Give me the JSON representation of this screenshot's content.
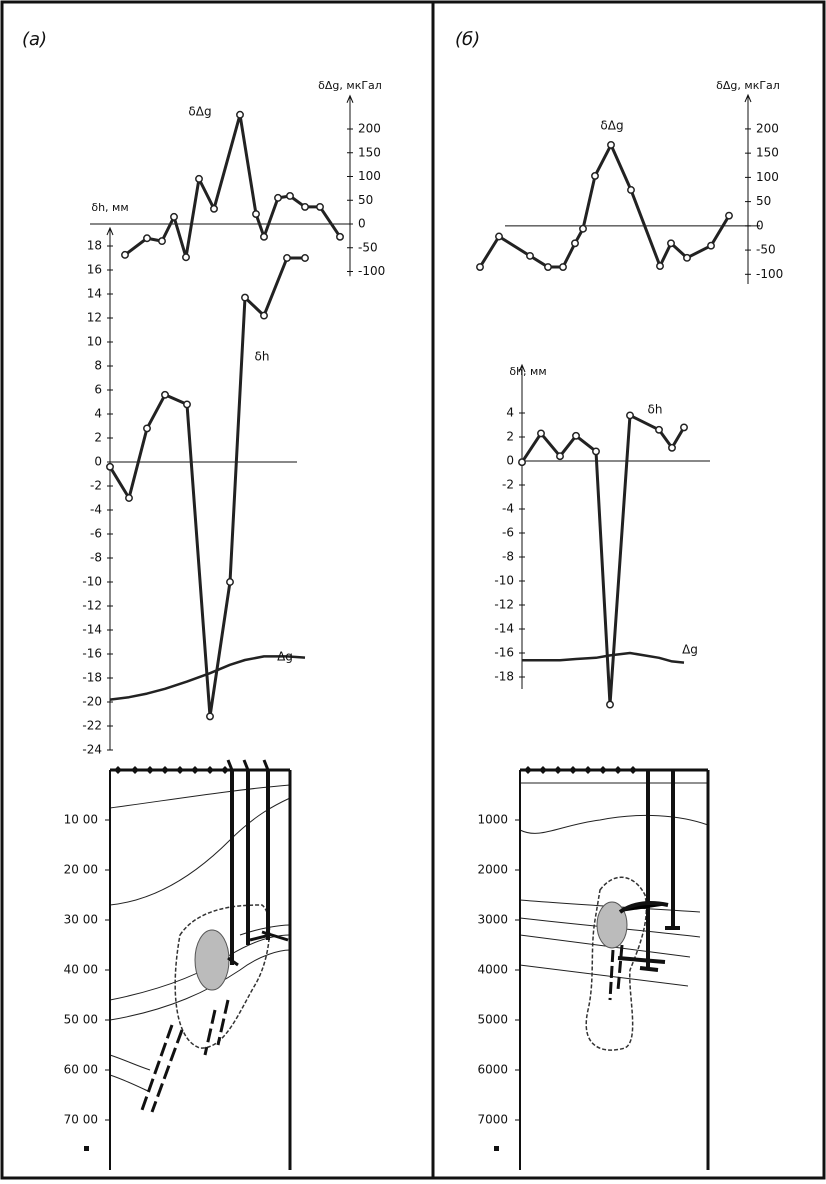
{
  "panel_labels": [
    "(а)",
    "(б)"
  ],
  "chart_data": [
    {
      "type": "line",
      "axis_label": "δΔg, мкГал",
      "categories": [
        null,
        null,
        null,
        null,
        null,
        null,
        null,
        null,
        null,
        null,
        null,
        null,
        null,
        null,
        null
      ],
      "series": [
        {
          "name": "δΔg",
          "color": "#222222",
          "marker": true,
          "values": [
            -65,
            -30,
            -36,
            15,
            -70,
            95,
            32,
            230,
            21,
            -27,
            55,
            59,
            36,
            36,
            -27
          ]
        }
      ],
      "ylim": [
        -110,
        270
      ],
      "yticks": [
        200,
        150,
        100,
        50,
        0,
        -50,
        -100
      ]
    },
    {
      "type": "line",
      "axis_label": "δh, мм",
      "categories": [
        null,
        null,
        null,
        null,
        null,
        null,
        null,
        null,
        null,
        null,
        null
      ],
      "series": [
        {
          "name": "δh",
          "color": "#222222",
          "marker": true,
          "values": [
            -0.4,
            -3,
            2.8,
            5.6,
            4.8,
            -21.2,
            -10,
            13.7,
            12.2,
            17,
            17
          ]
        },
        {
          "name": "Δg",
          "color": "#222222",
          "marker": false,
          "values": [
            -19.8,
            -19.6,
            -19.3,
            -18.9,
            -18.3,
            -17.6,
            -16.9,
            -16.5,
            -16.2,
            -16.2,
            -16.3
          ]
        }
      ],
      "ylim": [
        -24,
        19.5
      ],
      "yticks": [
        18,
        16,
        14,
        12,
        10,
        8,
        6,
        4,
        2,
        0,
        -2,
        -4,
        -6,
        -8,
        -10,
        -12,
        -14,
        -16,
        -18,
        -20,
        -22,
        -24
      ]
    },
    {
      "type": "section",
      "ylim": [
        0,
        8000
      ],
      "yticks": [
        {
          "value": 1000,
          "label": "10 00"
        },
        {
          "value": 2000,
          "label": "20 00"
        },
        {
          "value": 3000,
          "label": "30 00"
        },
        {
          "value": 4000,
          "label": "40 00"
        },
        {
          "value": 5000,
          "label": "50 00"
        },
        {
          "value": 6000,
          "label": "60 00"
        },
        {
          "value": 7000,
          "label": "70 00"
        }
      ]
    },
    {
      "type": "line",
      "axis_label": "δΔg, мкГал",
      "categories": [
        null,
        null,
        null,
        null,
        null,
        null,
        null,
        null,
        null,
        null,
        null,
        null,
        null,
        null,
        null
      ],
      "series": [
        {
          "name": "δΔg",
          "color": "#222222",
          "marker": true,
          "values": [
            -85,
            -22,
            -62,
            -85,
            -85,
            -36,
            -6,
            103,
            167,
            74,
            -83,
            -36,
            -66,
            -41,
            21
          ]
        }
      ],
      "ylim": [
        -120,
        270
      ],
      "yticks": [
        200,
        150,
        100,
        50,
        0,
        -50,
        -100
      ]
    },
    {
      "type": "line",
      "axis_label": "δh, мм",
      "categories": [
        null,
        null,
        null,
        null,
        null,
        null,
        null,
        null,
        null,
        null
      ],
      "series": [
        {
          "name": "δh",
          "color": "#222222",
          "marker": true,
          "values": [
            -0.1,
            2.3,
            0.4,
            2.1,
            0.8,
            -20.3,
            3.8,
            2.6,
            1.1,
            2.8
          ]
        },
        {
          "name": "Δg",
          "color": "#222222",
          "marker": false,
          "values": [
            -16.6,
            -16.6,
            -16.6,
            -16.5,
            -16.4,
            -16.2,
            -16.0,
            -16.4,
            -16.7,
            -16.8
          ]
        }
      ],
      "ylim": [
        -19,
        8
      ],
      "yticks": [
        4,
        2,
        0,
        -2,
        -4,
        -6,
        -8,
        -10,
        -12,
        -14,
        -16,
        -18
      ]
    },
    {
      "type": "section",
      "ylim": [
        0,
        8000
      ],
      "yticks": [
        1000,
        2000,
        3000,
        4000,
        5000,
        6000,
        7000
      ]
    }
  ]
}
